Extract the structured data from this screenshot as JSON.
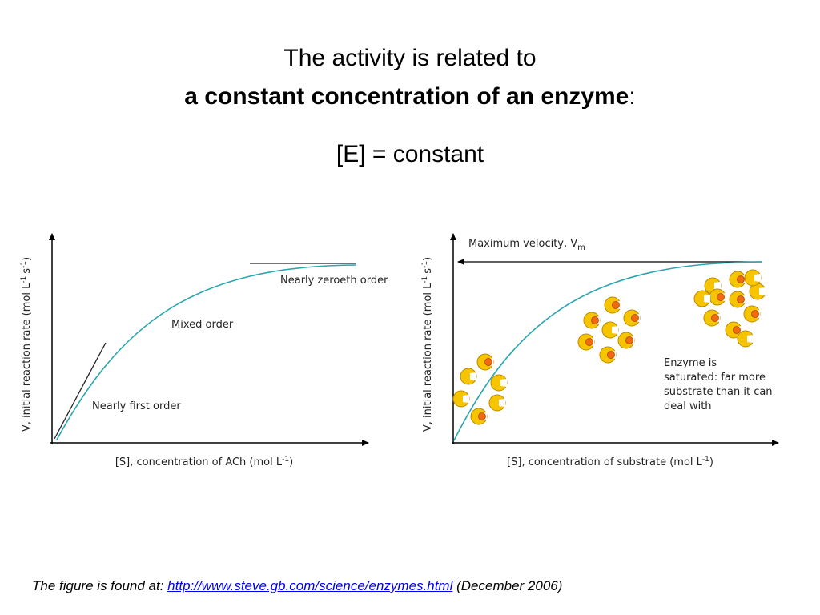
{
  "title": {
    "line1": "The activity is related to",
    "line2_bold": "a constant concentration of an enzyme",
    "line2_tail": ":"
  },
  "equation": "[E] = constant",
  "figures": [
    {
      "y_axis_label": [
        "V, initial reaction rate (mol L",
        "-1",
        "s",
        "-1",
        ")"
      ],
      "x_axis_label": [
        "[S], concentration of ACh (mol L",
        "-1",
        ")"
      ],
      "annotations": [
        "Nearly zeroeth order",
        "Mixed order",
        "Nearly first order"
      ]
    },
    {
      "y_axis_label": [
        "V, initial reaction rate (mol L",
        "-1",
        "s",
        "-1",
        ")"
      ],
      "x_axis_label": [
        "[S], concentration of substrate (mol L",
        "-1",
        ")"
      ],
      "max_label": [
        "Maximum velocity, V",
        "m"
      ],
      "note": [
        "Enzyme is",
        "saturated: far more",
        "substrate than it can",
        "deal with"
      ]
    }
  ],
  "footer": {
    "prefix": "The figure is found at:",
    "link": "http://www.steve.gb.com/science/enzymes.html",
    "suffix": "(December 2006)"
  }
}
